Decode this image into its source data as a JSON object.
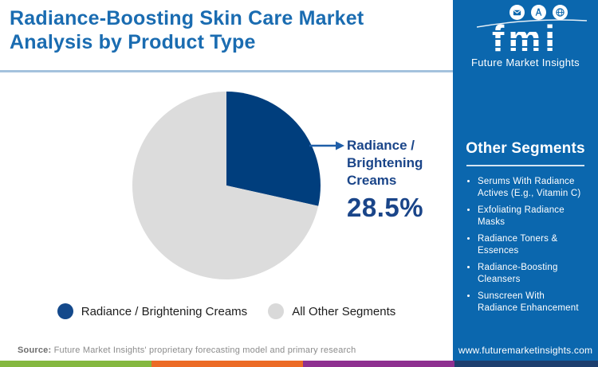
{
  "header": {
    "title": "Radiance-Boosting Skin Care Market Analysis by Product Type"
  },
  "logo": {
    "abbr": "fmi",
    "name": "Future Market Insights",
    "icons": [
      "mail-icon",
      "compass-icon",
      "globe-icon"
    ]
  },
  "sidebar": {
    "heading": "Other Segments",
    "items": [
      "Serums With Radiance Actives (E.g., Vitamin C)",
      "Exfoliating Radiance Masks",
      "Radiance Toners & Essences",
      "Radiance-Boosting Cleansers",
      "Sunscreen With Radiance Enhancement"
    ]
  },
  "chart_data": {
    "type": "pie",
    "title": "Radiance-Boosting Skin Care Market Analysis by Product Type",
    "slices": [
      {
        "label": "Radiance / Brightening Creams",
        "value": 28.5,
        "color": "#003e7d"
      },
      {
        "label": "All Other Segments",
        "value": 71.5,
        "color": "#dcdcdc"
      }
    ],
    "start_angle_deg": 0,
    "direction": "clockwise",
    "legend_position": "bottom"
  },
  "callout": {
    "label": "Radiance /\nBrightening\nCreams",
    "value": "28.5%",
    "arrow_color": "#1f5ea8"
  },
  "legend": [
    {
      "label": "Radiance / Brightening Creams",
      "color": "#14498b"
    },
    {
      "label": "All Other Segments",
      "color": "#d9d9d9"
    }
  ],
  "source": {
    "prefix": "Source:",
    "text": " Future Market Insights' proprietary forecasting model and primary research"
  },
  "footer": {
    "url": "www.futuremarketinsights.com",
    "strip_colors": [
      "#85b840",
      "#ec6b26",
      "#8e3090",
      "#1c3e6e"
    ]
  },
  "colors": {
    "title": "#1a6cb1",
    "sidebar_bg": "#0b67ae",
    "header_divider": "#a4c2dd"
  }
}
